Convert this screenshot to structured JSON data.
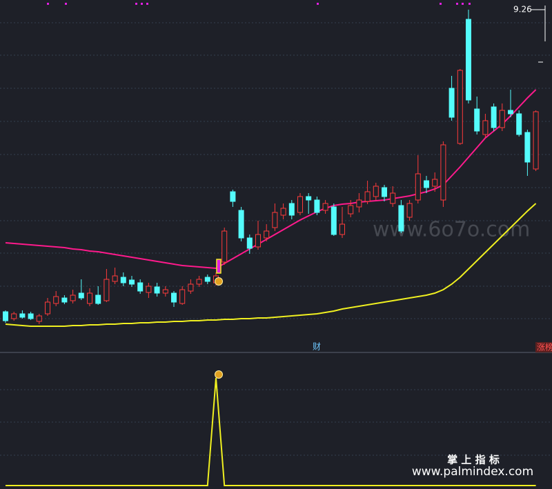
{
  "chart_data": [
    {
      "type": "candlestick",
      "up_color": "#ff3b3b",
      "down_color": "#54fcfc",
      "ylim": [
        4.32,
        9.4
      ],
      "open": [
        4.88,
        4.78,
        4.85,
        4.85,
        4.74,
        4.85,
        5.0,
        5.08,
        5.04,
        5.15,
        5.0,
        5.12,
        5.04,
        5.32,
        5.38,
        5.34,
        5.3,
        5.16,
        5.24,
        5.15,
        5.15,
        5.0,
        5.18,
        5.28,
        5.38,
        5.3,
        5.6,
        6.62,
        6.35,
        5.95,
        5.82,
        5.95,
        6.1,
        6.28,
        6.45,
        6.32,
        6.55,
        6.5,
        6.35,
        6.4,
        6.0,
        6.3,
        6.4,
        6.48,
        6.55,
        6.68,
        6.45,
        6.42,
        6.25,
        6.5,
        6.78,
        6.7,
        6.5,
        8.12,
        7.32,
        9.12,
        7.82,
        7.45,
        7.85,
        7.55,
        7.8,
        7.75,
        7.48,
        6.95
      ],
      "high": [
        4.9,
        4.88,
        4.9,
        4.88,
        4.85,
        5.08,
        5.18,
        5.12,
        5.2,
        5.35,
        5.22,
        5.25,
        5.5,
        5.52,
        5.45,
        5.4,
        5.35,
        5.3,
        5.3,
        5.25,
        5.18,
        5.25,
        5.35,
        5.4,
        5.42,
        5.45,
        6.1,
        6.65,
        6.4,
        6.0,
        6.2,
        6.15,
        6.45,
        6.45,
        6.5,
        6.6,
        6.6,
        6.55,
        6.5,
        6.45,
        6.4,
        6.5,
        6.6,
        6.78,
        6.75,
        6.72,
        6.7,
        6.5,
        6.5,
        7.15,
        6.85,
        6.9,
        7.35,
        8.3,
        8.4,
        9.26,
        8.0,
        7.75,
        7.9,
        7.9,
        8.1,
        7.8,
        7.52,
        7.8
      ],
      "low": [
        4.72,
        4.75,
        4.78,
        4.76,
        4.7,
        4.82,
        4.96,
        4.99,
        5.0,
        5.05,
        4.96,
        4.98,
        5.02,
        5.28,
        5.25,
        5.24,
        5.14,
        5.08,
        5.1,
        5.1,
        4.95,
        4.98,
        5.14,
        5.24,
        5.28,
        5.26,
        5.56,
        6.4,
        5.9,
        5.72,
        5.78,
        5.9,
        6.05,
        6.22,
        6.22,
        6.28,
        6.3,
        6.28,
        6.3,
        5.98,
        5.95,
        6.25,
        6.32,
        6.44,
        6.5,
        6.48,
        6.4,
        6.02,
        6.2,
        6.45,
        6.6,
        6.62,
        6.4,
        7.65,
        7.3,
        7.9,
        7.45,
        7.4,
        7.5,
        7.5,
        7.7,
        7.42,
        6.85,
        6.92
      ],
      "close": [
        4.75,
        4.85,
        4.8,
        4.78,
        4.82,
        5.02,
        5.1,
        5.02,
        5.12,
        5.08,
        5.15,
        5.0,
        5.35,
        5.4,
        5.3,
        5.28,
        5.18,
        5.25,
        5.15,
        5.2,
        5.02,
        5.2,
        5.28,
        5.35,
        5.32,
        5.4,
        6.05,
        6.48,
        5.95,
        5.8,
        6.0,
        6.05,
        6.32,
        6.38,
        6.28,
        6.55,
        6.5,
        6.32,
        6.45,
        6.0,
        6.15,
        6.42,
        6.5,
        6.62,
        6.7,
        6.55,
        6.6,
        6.05,
        6.45,
        6.88,
        6.68,
        6.8,
        7.3,
        7.7,
        8.38,
        7.95,
        7.5,
        7.65,
        7.55,
        7.8,
        7.75,
        7.45,
        7.05,
        7.78
      ],
      "lines": [
        {
          "color": "#ff1a8c",
          "values": [
            5.88,
            5.87,
            5.86,
            5.85,
            5.84,
            5.83,
            5.82,
            5.81,
            5.79,
            5.78,
            5.76,
            5.75,
            5.73,
            5.71,
            5.69,
            5.67,
            5.65,
            5.63,
            5.61,
            5.59,
            5.57,
            5.55,
            5.54,
            5.53,
            5.52,
            5.51,
            5.58,
            5.65,
            5.72,
            5.79,
            5.86,
            5.93,
            6.0,
            6.07,
            6.14,
            6.21,
            6.27,
            6.33,
            6.38,
            6.42,
            6.44,
            6.45,
            6.47,
            6.48,
            6.49,
            6.5,
            6.52,
            6.54,
            6.56,
            6.59,
            6.62,
            6.66,
            6.72,
            6.85,
            6.98,
            7.12,
            7.26,
            7.4,
            7.5,
            7.6,
            7.72,
            7.85,
            7.98,
            8.1
          ]
        },
        {
          "color": "#f0f020",
          "values": [
            4.7,
            4.69,
            4.68,
            4.67,
            4.67,
            4.67,
            4.67,
            4.67,
            4.68,
            4.68,
            4.69,
            4.69,
            4.7,
            4.7,
            4.71,
            4.71,
            4.72,
            4.72,
            4.73,
            4.73,
            4.74,
            4.74,
            4.75,
            4.75,
            4.76,
            4.76,
            4.77,
            4.77,
            4.78,
            4.78,
            4.79,
            4.79,
            4.8,
            4.81,
            4.82,
            4.83,
            4.84,
            4.85,
            4.87,
            4.89,
            4.92,
            4.94,
            4.96,
            4.98,
            5.0,
            5.02,
            5.04,
            5.06,
            5.08,
            5.1,
            5.12,
            5.15,
            5.2,
            5.28,
            5.38,
            5.5,
            5.62,
            5.74,
            5.86,
            5.98,
            6.1,
            6.22,
            6.34,
            6.45
          ]
        }
      ],
      "max_price": 9.26,
      "annotation": "财",
      "tag": "涨榜",
      "watermark": "www.6o7o.com"
    },
    {
      "type": "line",
      "color": "#f0f020",
      "ylim": [
        0,
        1
      ],
      "values": [
        0,
        0,
        0,
        0,
        0,
        0,
        0,
        0,
        0,
        0,
        0,
        0,
        0,
        0,
        0,
        0,
        0,
        0,
        0,
        0,
        0,
        0,
        0,
        0,
        0,
        1,
        0,
        0,
        0,
        0,
        0,
        0,
        0,
        0,
        0,
        0,
        0,
        0,
        0,
        0,
        0,
        0,
        0,
        0,
        0,
        0,
        0,
        0,
        0,
        0,
        0,
        0,
        0,
        0,
        0,
        0,
        0,
        0,
        0,
        0,
        0,
        0,
        0,
        0
      ],
      "footer_title": "掌 上 指 标",
      "footer_url": "www.palmindex.com"
    }
  ]
}
